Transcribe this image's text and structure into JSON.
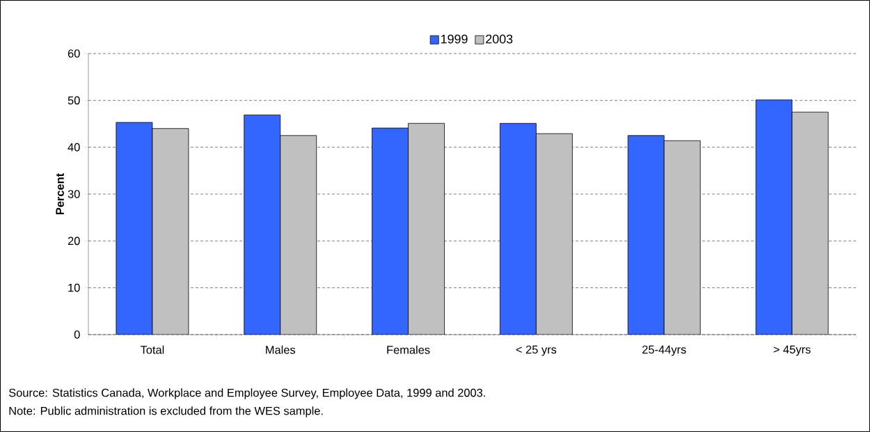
{
  "chart_data": {
    "type": "bar",
    "ylabel": "Percent",
    "categories": [
      "Total",
      "Males",
      "Females",
      "< 25 yrs",
      "25-44yrs",
      "> 45yrs"
    ],
    "series": [
      {
        "name": "1999",
        "color": "#3366ff",
        "values": [
          45.3,
          46.9,
          44.1,
          45.1,
          42.5,
          50.1
        ]
      },
      {
        "name": "2003",
        "color": "#c0c0c0",
        "values": [
          44.0,
          42.5,
          45.1,
          42.9,
          41.4,
          47.5
        ]
      }
    ],
    "ylim": [
      0,
      60
    ],
    "yticks": [
      0,
      10,
      20,
      30,
      40,
      50,
      60
    ],
    "grid": "y",
    "legend": "top",
    "annotations": [
      "Source: Statistics Canada, Workplace and Employee Survey, Employee Data, 1999 and 2003.",
      "Note: Public administration is excluded from the WES sample."
    ]
  }
}
